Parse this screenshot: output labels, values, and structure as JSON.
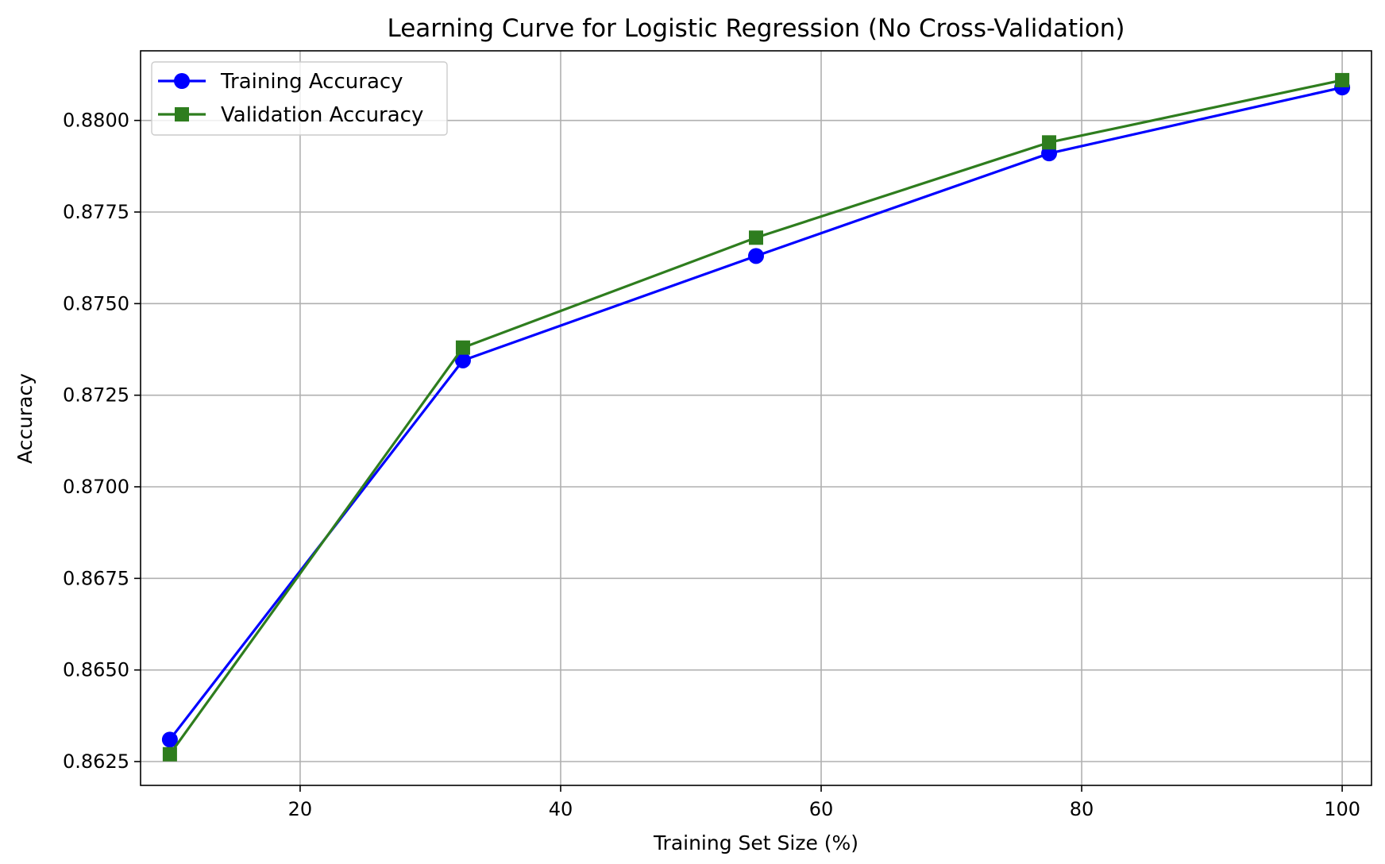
{
  "chart_data": {
    "type": "line",
    "title": "Learning Curve for Logistic Regression (No Cross-Validation)",
    "xlabel": "Training Set Size (%)",
    "ylabel": "Accuracy",
    "xlim": [
      7.75,
      102.25
    ],
    "ylim": [
      0.86185,
      0.8819
    ],
    "x": [
      10,
      32.5,
      55,
      77.5,
      100
    ],
    "xticks": [
      20,
      40,
      60,
      80,
      100
    ],
    "xtick_labels": [
      "20",
      "40",
      "60",
      "80",
      "100"
    ],
    "yticks": [
      0.8625,
      0.865,
      0.8675,
      0.87,
      0.8725,
      0.875,
      0.8775,
      0.88
    ],
    "ytick_labels": [
      "0.8625",
      "0.8650",
      "0.8675",
      "0.8700",
      "0.8725",
      "0.8750",
      "0.8775",
      "0.8800"
    ],
    "grid": true,
    "legend_position": "top-left",
    "series": [
      {
        "name": "Training Accuracy",
        "values": [
          0.8631,
          0.87345,
          0.8763,
          0.8791,
          0.8809
        ],
        "color": "#0000ff",
        "marker": "circle"
      },
      {
        "name": "Validation Accuracy",
        "values": [
          0.8627,
          0.8738,
          0.8768,
          0.8794,
          0.8811
        ],
        "color": "#2e7d1e",
        "marker": "square"
      }
    ]
  }
}
